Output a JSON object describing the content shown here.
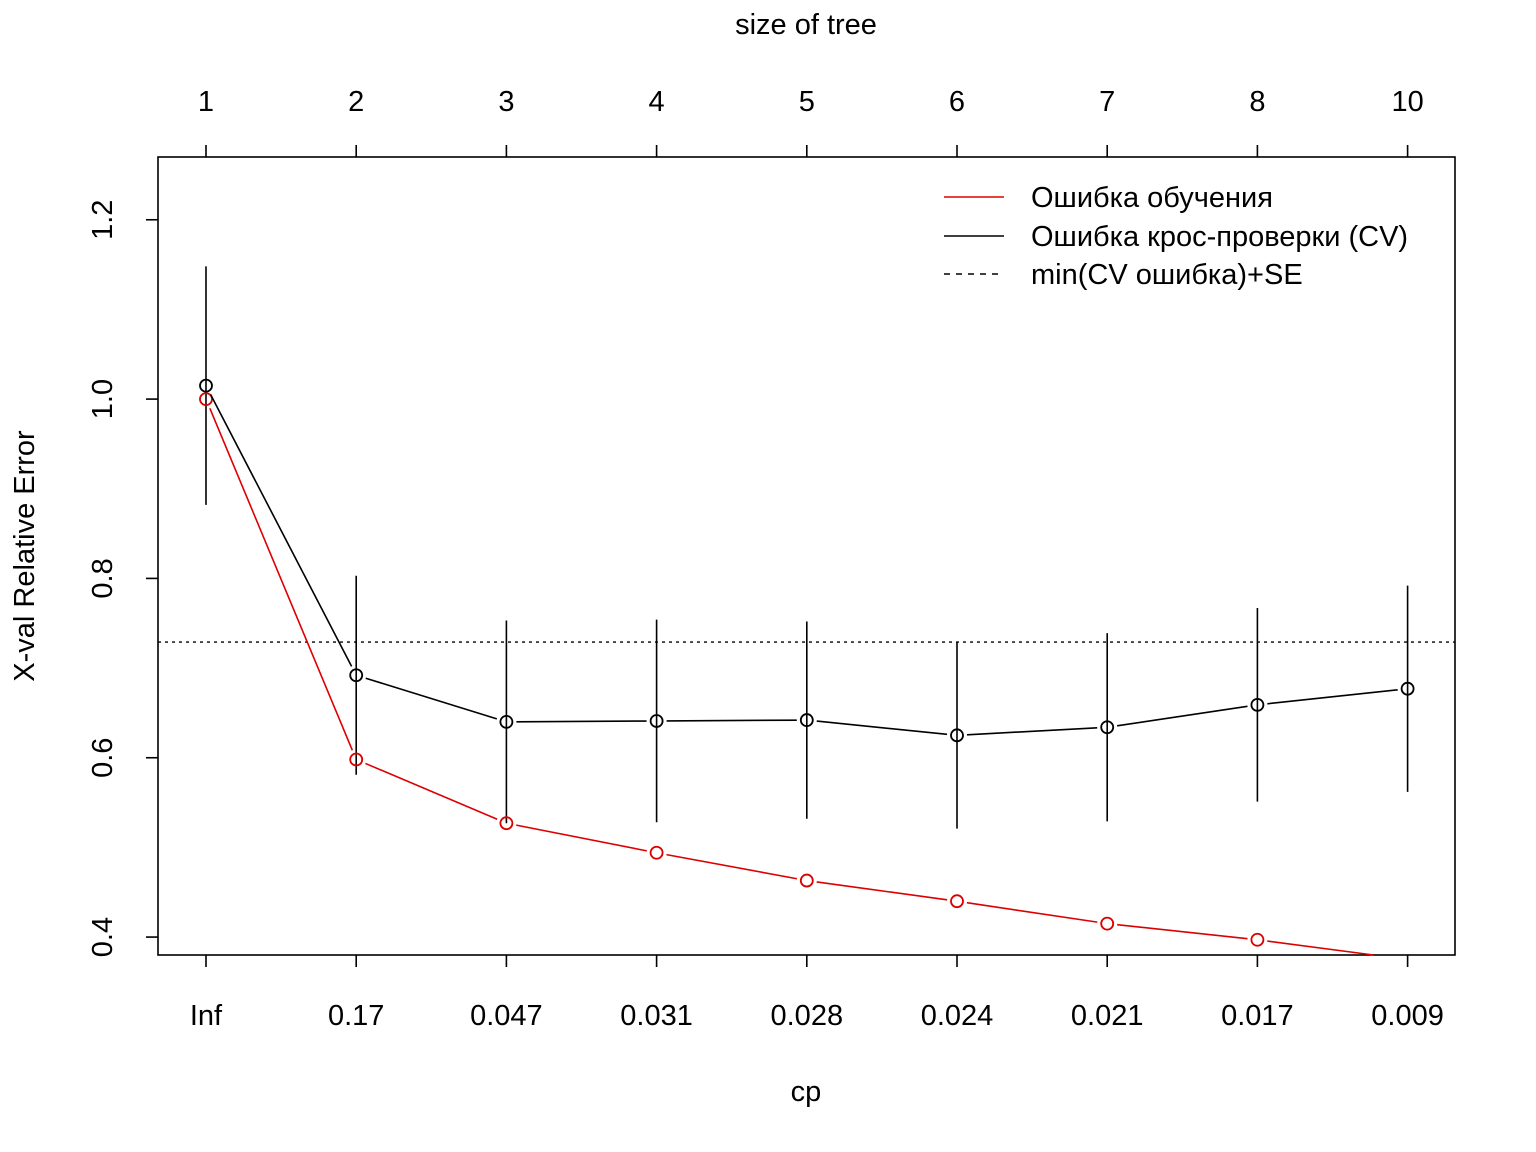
{
  "chart_data": {
    "type": "line",
    "top_axis_label": "size of tree",
    "xlabel": "cp",
    "ylabel": "X-val Relative Error",
    "ylim": [
      0.38,
      1.27
    ],
    "y_ticks": [
      0.4,
      0.6,
      0.8,
      1.0,
      1.2
    ],
    "y_tick_labels": [
      "0.4",
      "0.6",
      "0.8",
      "1.0",
      "1.2"
    ],
    "categories": [
      "Inf",
      "0.17",
      "0.047",
      "0.031",
      "0.028",
      "0.024",
      "0.021",
      "0.017",
      "0.009"
    ],
    "size_labels": [
      "1",
      "2",
      "3",
      "4",
      "5",
      "6",
      "7",
      "8",
      "10"
    ],
    "series": [
      {
        "name": "Ошибка обучения",
        "color": "#dd0000",
        "line_style": "solid",
        "values": [
          1.0,
          0.598,
          0.527,
          0.494,
          0.463,
          0.44,
          0.415,
          0.397,
          0.375
        ]
      },
      {
        "name": "Ошибка крос-проверки (CV)",
        "color": "#000000",
        "line_style": "solid",
        "values": [
          1.015,
          0.692,
          0.64,
          0.641,
          0.642,
          0.625,
          0.634,
          0.659,
          0.677
        ],
        "error_low": [
          0.882,
          0.581,
          0.527,
          0.528,
          0.532,
          0.521,
          0.529,
          0.551,
          0.562
        ],
        "error_high": [
          1.148,
          0.803,
          0.753,
          0.754,
          0.752,
          0.729,
          0.739,
          0.767,
          0.792
        ]
      },
      {
        "name": "min(CV ошибка)+SE",
        "color": "#000000",
        "line_style": "dotted",
        "value": 0.729
      }
    ],
    "legend_position": "top-right",
    "grid": false
  }
}
